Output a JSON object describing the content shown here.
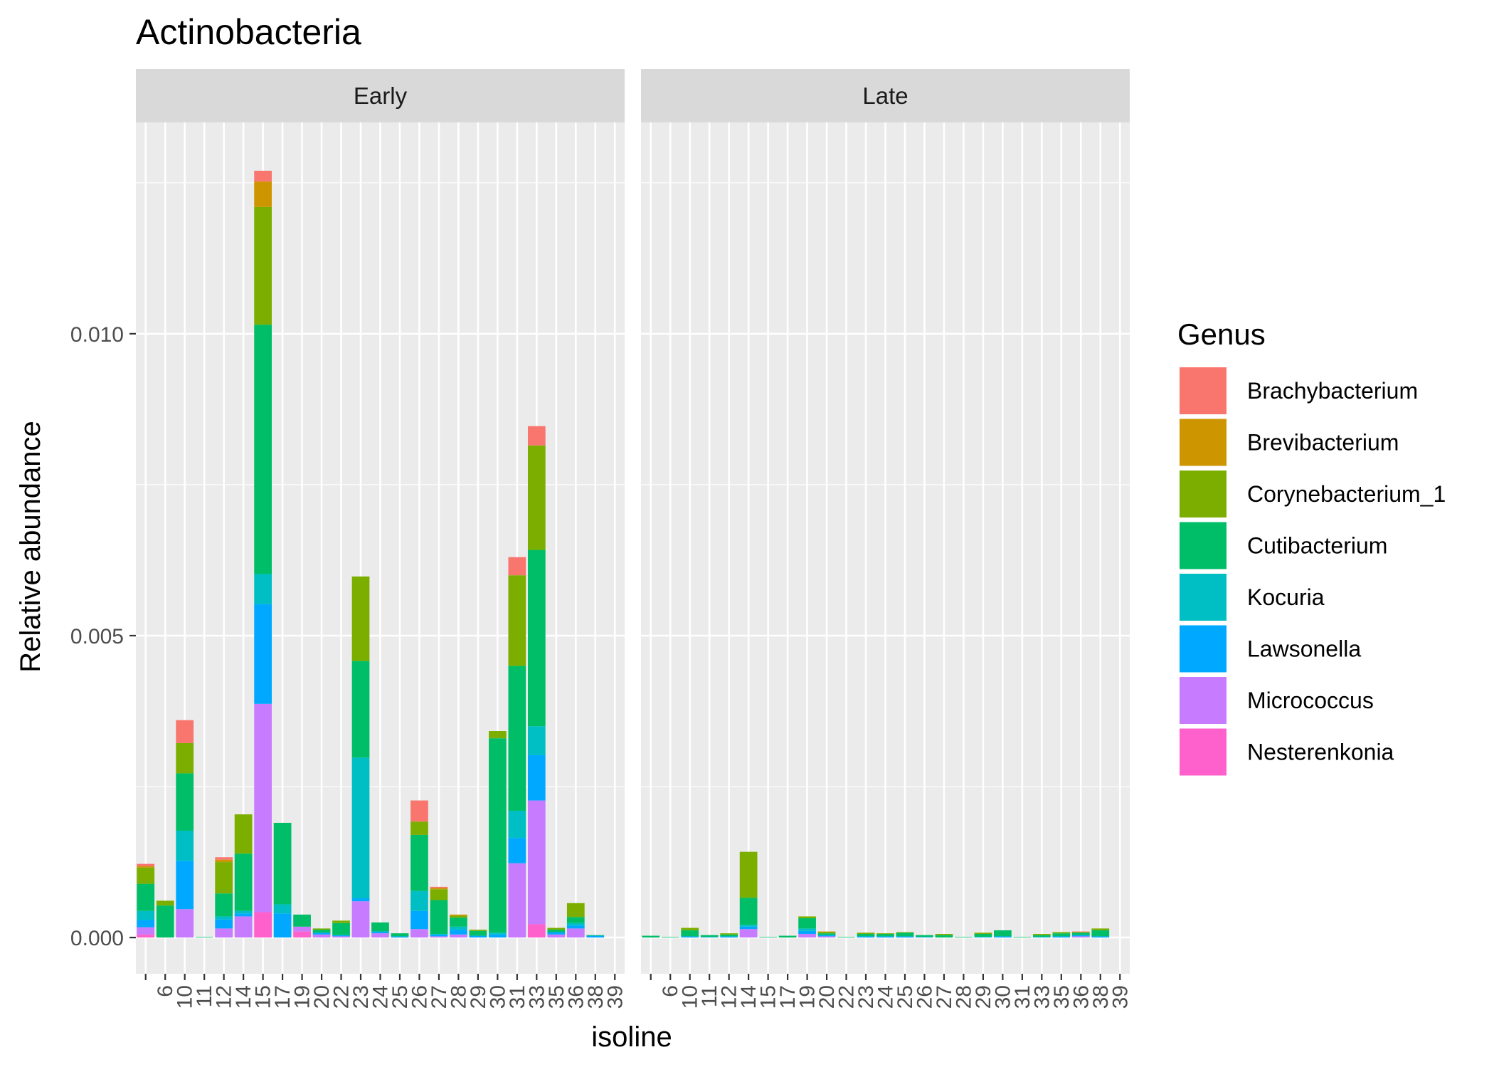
{
  "chart_data": {
    "type": "bar",
    "stacked": true,
    "faceted": true,
    "title": "Actinobacteria",
    "xlabel": "isoline",
    "ylabel": "Relative abundance",
    "ylim": [
      -0.0006,
      0.0135
    ],
    "yticks": [
      0.0,
      0.005,
      0.01
    ],
    "ytick_labels": [
      "0.000",
      "0.005",
      "0.010"
    ],
    "grid": true,
    "legend": {
      "title": "Genus",
      "position": "right"
    },
    "categories": [
      "",
      "6",
      "10",
      "11",
      "12",
      "14",
      "15",
      "17",
      "19",
      "20",
      "22",
      "23",
      "24",
      "25",
      "26",
      "27",
      "28",
      "29",
      "30",
      "31",
      "33",
      "35",
      "36",
      "38",
      "39"
    ],
    "genera": [
      {
        "name": "Brachybacterium",
        "color": "#F8766D"
      },
      {
        "name": "Brevibacterium",
        "color": "#CD9600"
      },
      {
        "name": "Corynebacterium_1",
        "color": "#7CAE00"
      },
      {
        "name": "Cutibacterium",
        "color": "#00BE67"
      },
      {
        "name": "Kocuria",
        "color": "#00BFC4"
      },
      {
        "name": "Lawsonella",
        "color": "#00A9FF"
      },
      {
        "name": "Micrococcus",
        "color": "#C77CFF"
      },
      {
        "name": "Nesterenkonia",
        "color": "#FF61CC"
      }
    ],
    "stack_order_bottom_to_top": [
      "Nesterenkonia",
      "Micrococcus",
      "Lawsonella",
      "Kocuria",
      "Cutibacterium",
      "Corynebacterium_1",
      "Brevibacterium",
      "Brachybacterium"
    ],
    "panels": [
      {
        "label": "Early",
        "bars": [
          {
            "x": "",
            "values": {
              "Nesterenkonia": 5e-05,
              "Micrococcus": 0.00012,
              "Lawsonella": 0.00012,
              "Kocuria": 0.00015,
              "Cutibacterium": 0.00045,
              "Corynebacterium_1": 0.00027,
              "Brevibacterium": 2e-05,
              "Brachybacterium": 4e-05
            }
          },
          {
            "x": "6",
            "values": {
              "Cutibacterium": 0.00053,
              "Corynebacterium_1": 8e-05
            }
          },
          {
            "x": "10",
            "values": {
              "Micrococcus": 0.00047,
              "Lawsonella": 0.0008,
              "Kocuria": 0.0005,
              "Cutibacterium": 0.00095,
              "Corynebacterium_1": 0.0005,
              "Brachybacterium": 0.00038
            }
          },
          {
            "x": "11",
            "values": {
              "Cutibacterium": 1e-05
            }
          },
          {
            "x": "12",
            "values": {
              "Micrococcus": 0.00015,
              "Lawsonella": 0.00015,
              "Kocuria": 5e-05,
              "Cutibacterium": 0.00038,
              "Corynebacterium_1": 0.00052,
              "Brevibacterium": 4e-05,
              "Brachybacterium": 4e-05
            }
          },
          {
            "x": "14",
            "values": {
              "Micrococcus": 0.00035,
              "Lawsonella": 5e-05,
              "Kocuria": 4e-05,
              "Cutibacterium": 0.00095,
              "Corynebacterium_1": 0.00065
            }
          },
          {
            "x": "15",
            "values": {
              "Nesterenkonia": 0.00042,
              "Micrococcus": 0.00345,
              "Lawsonella": 0.00165,
              "Kocuria": 0.0005,
              "Cutibacterium": 0.00413,
              "Corynebacterium_1": 0.00195,
              "Brevibacterium": 0.00042,
              "Brachybacterium": 0.00018
            }
          },
          {
            "x": "17",
            "values": {
              "Lawsonella": 0.0004,
              "Kocuria": 0.00015,
              "Cutibacterium": 0.00135
            }
          },
          {
            "x": "19",
            "values": {
              "Nesterenkonia": 0.0001,
              "Micrococcus": 8e-05,
              "Cutibacterium": 0.0002
            }
          },
          {
            "x": "20",
            "values": {
              "Micrococcus": 5e-05,
              "Lawsonella": 3e-05,
              "Cutibacterium": 5e-05,
              "Corynebacterium_1": 2e-05
            }
          },
          {
            "x": "22",
            "values": {
              "Micrococcus": 2e-05,
              "Lawsonella": 2e-05,
              "Cutibacterium": 0.0002,
              "Corynebacterium_1": 4e-05
            }
          },
          {
            "x": "23",
            "values": {
              "Micrococcus": 0.0006,
              "Lawsonella": 5e-05,
              "Kocuria": 0.00233,
              "Cutibacterium": 0.0016,
              "Corynebacterium_1": 0.0014
            }
          },
          {
            "x": "24",
            "values": {
              "Micrococcus": 7e-05,
              "Lawsonella": 3e-05,
              "Cutibacterium": 0.00015
            }
          },
          {
            "x": "25",
            "values": {
              "Lawsonella": 2e-05,
              "Cutibacterium": 5e-05
            }
          },
          {
            "x": "26",
            "values": {
              "Micrococcus": 0.00014,
              "Lawsonella": 0.0003,
              "Kocuria": 0.00033,
              "Cutibacterium": 0.00093,
              "Corynebacterium_1": 0.00022,
              "Brachybacterium": 0.00035
            }
          },
          {
            "x": "27",
            "values": {
              "Micrococcus": 2e-05,
              "Lawsonella": 3e-05,
              "Kocuria": 1e-05,
              "Cutibacterium": 0.00056,
              "Corynebacterium_1": 0.00018,
              "Brevibacterium": 2e-05,
              "Brachybacterium": 2e-05
            }
          },
          {
            "x": "28",
            "values": {
              "Micrococcus": 5e-05,
              "Lawsonella": 8e-05,
              "Kocuria": 5e-05,
              "Cutibacterium": 0.00015,
              "Corynebacterium_1": 3e-05,
              "Brevibacterium": 2e-05
            }
          },
          {
            "x": "29",
            "values": {
              "Lawsonella": 3e-05,
              "Cutibacterium": 8e-05,
              "Corynebacterium_1": 2e-05
            }
          },
          {
            "x": "30",
            "values": {
              "Lawsonella": 5e-05,
              "Kocuria": 3e-05,
              "Cutibacterium": 0.00322,
              "Corynebacterium_1": 0.00012
            }
          },
          {
            "x": "31",
            "values": {
              "Micrococcus": 0.00123,
              "Lawsonella": 0.00042,
              "Kocuria": 0.00045,
              "Cutibacterium": 0.0024,
              "Corynebacterium_1": 0.0015,
              "Brachybacterium": 0.0003
            }
          },
          {
            "x": "33",
            "values": {
              "Nesterenkonia": 0.00022,
              "Micrococcus": 0.00205,
              "Lawsonella": 0.00075,
              "Kocuria": 0.00048,
              "Cutibacterium": 0.00292,
              "Corynebacterium_1": 0.00173,
              "Brachybacterium": 0.00032
            }
          },
          {
            "x": "35",
            "values": {
              "Micrococcus": 5e-05,
              "Lawsonella": 4e-05,
              "Cutibacterium": 4e-05,
              "Corynebacterium_1": 3e-05
            }
          },
          {
            "x": "36",
            "values": {
              "Micrococcus": 0.00015,
              "Lawsonella": 5e-05,
              "Kocuria": 4e-05,
              "Cutibacterium": 0.0001,
              "Corynebacterium_1": 0.00023
            }
          },
          {
            "x": "38",
            "values": {
              "Lawsonella": 3e-05,
              "Cutibacterium": 1e-05
            }
          },
          {
            "x": "39",
            "values": {}
          }
        ]
      },
      {
        "label": "Late",
        "bars": [
          {
            "x": "",
            "values": {
              "Cutibacterium": 3e-05
            }
          },
          {
            "x": "6",
            "values": {
              "Cutibacterium": 1e-05
            }
          },
          {
            "x": "10",
            "values": {
              "Lawsonella": 2e-05,
              "Cutibacterium": 0.0001,
              "Corynebacterium_1": 4e-05
            }
          },
          {
            "x": "11",
            "values": {
              "Lawsonella": 1e-05,
              "Cutibacterium": 3e-05
            }
          },
          {
            "x": "12",
            "values": {
              "Lawsonella": 2e-05,
              "Cutibacterium": 3e-05,
              "Corynebacterium_1": 2e-05
            }
          },
          {
            "x": "14",
            "values": {
              "Micrococcus": 0.00014,
              "Lawsonella": 4e-05,
              "Kocuria": 3e-05,
              "Cutibacterium": 0.00045,
              "Corynebacterium_1": 0.00076
            }
          },
          {
            "x": "15",
            "values": {
              "Cutibacterium": 1e-05
            }
          },
          {
            "x": "17",
            "values": {
              "Cutibacterium": 3e-05
            }
          },
          {
            "x": "19",
            "values": {
              "Micrococcus": 6e-05,
              "Lawsonella": 5e-05,
              "Kocuria": 4e-05,
              "Cutibacterium": 0.00017,
              "Corynebacterium_1": 3e-05
            }
          },
          {
            "x": "20",
            "values": {
              "Micrococcus": 2e-05,
              "Lawsonella": 2e-05,
              "Cutibacterium": 3e-05,
              "Corynebacterium_1": 2e-05,
              "Brevibacterium": 1e-05
            }
          },
          {
            "x": "22",
            "values": {
              "Cutibacterium": 1e-05
            }
          },
          {
            "x": "23",
            "values": {
              "Lawsonella": 2e-05,
              "Cutibacterium": 4e-05,
              "Corynebacterium_1": 2e-05
            }
          },
          {
            "x": "24",
            "values": {
              "Lawsonella": 2e-05,
              "Cutibacterium": 4e-05,
              "Corynebacterium_1": 1e-05
            }
          },
          {
            "x": "25",
            "values": {
              "Lawsonella": 2e-05,
              "Cutibacterium": 6e-05,
              "Corynebacterium_1": 1e-05
            }
          },
          {
            "x": "26",
            "values": {
              "Lawsonella": 1e-05,
              "Cutibacterium": 3e-05
            }
          },
          {
            "x": "27",
            "values": {
              "Cutibacterium": 4e-05,
              "Corynebacterium_1": 2e-05
            }
          },
          {
            "x": "28",
            "values": {
              "Cutibacterium": 1e-05
            }
          },
          {
            "x": "29",
            "values": {
              "Lawsonella": 1e-05,
              "Cutibacterium": 5e-05,
              "Corynebacterium_1": 2e-05
            }
          },
          {
            "x": "30",
            "values": {
              "Lawsonella": 2e-05,
              "Cutibacterium": 0.0001
            }
          },
          {
            "x": "31",
            "values": {
              "Cutibacterium": 1e-05
            }
          },
          {
            "x": "33",
            "values": {
              "Lawsonella": 1e-05,
              "Cutibacterium": 3e-05,
              "Corynebacterium_1": 2e-05
            }
          },
          {
            "x": "35",
            "values": {
              "Lawsonella": 2e-05,
              "Cutibacterium": 5e-05,
              "Corynebacterium_1": 2e-05
            }
          },
          {
            "x": "36",
            "values": {
              "Micrococcus": 2e-05,
              "Lawsonella": 2e-05,
              "Cutibacterium": 4e-05,
              "Corynebacterium_1": 1e-05,
              "Brachybacterium": 1e-05
            }
          },
          {
            "x": "38",
            "values": {
              "Lawsonella": 2e-05,
              "Cutibacterium": 0.0001,
              "Corynebacterium_1": 3e-05
            }
          },
          {
            "x": "39",
            "values": {}
          }
        ]
      }
    ]
  }
}
